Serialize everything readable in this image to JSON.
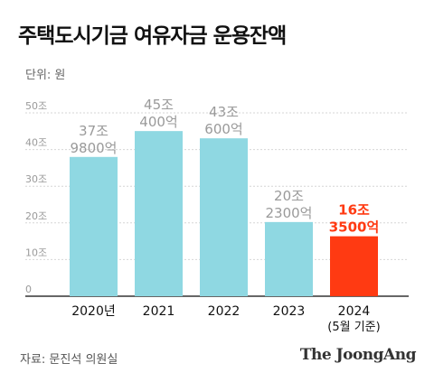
{
  "title": "주택도시기금 여유자금 운용잔액",
  "unit": "단위: 원",
  "source": "자료: 문진석 의원실",
  "brand": "The JoongAng",
  "colors": {
    "bar": "#8fd8e2",
    "highlight": "#ff3a12",
    "label": "#9a9a9a"
  },
  "chart_data": {
    "type": "bar",
    "categories": [
      "2020년",
      "2021",
      "2022",
      "2023",
      "2024"
    ],
    "category_sublabels": [
      "",
      "",
      "",
      "",
      "(5월 기준)"
    ],
    "values": [
      37.98,
      45.04,
      43.06,
      20.23,
      16.35
    ],
    "value_labels": [
      [
        "37조",
        "9800억"
      ],
      [
        "45조",
        "400억"
      ],
      [
        "43조",
        "600억"
      ],
      [
        "20조",
        "2300억"
      ],
      [
        "16조",
        "3500억"
      ]
    ],
    "highlight_index": 4,
    "ylim": [
      0,
      50
    ],
    "yticks": [
      0,
      10,
      20,
      30,
      40,
      50
    ],
    "ytick_labels": [
      "0",
      "10조",
      "20조",
      "30조",
      "40조",
      "50조"
    ],
    "grid": true
  }
}
